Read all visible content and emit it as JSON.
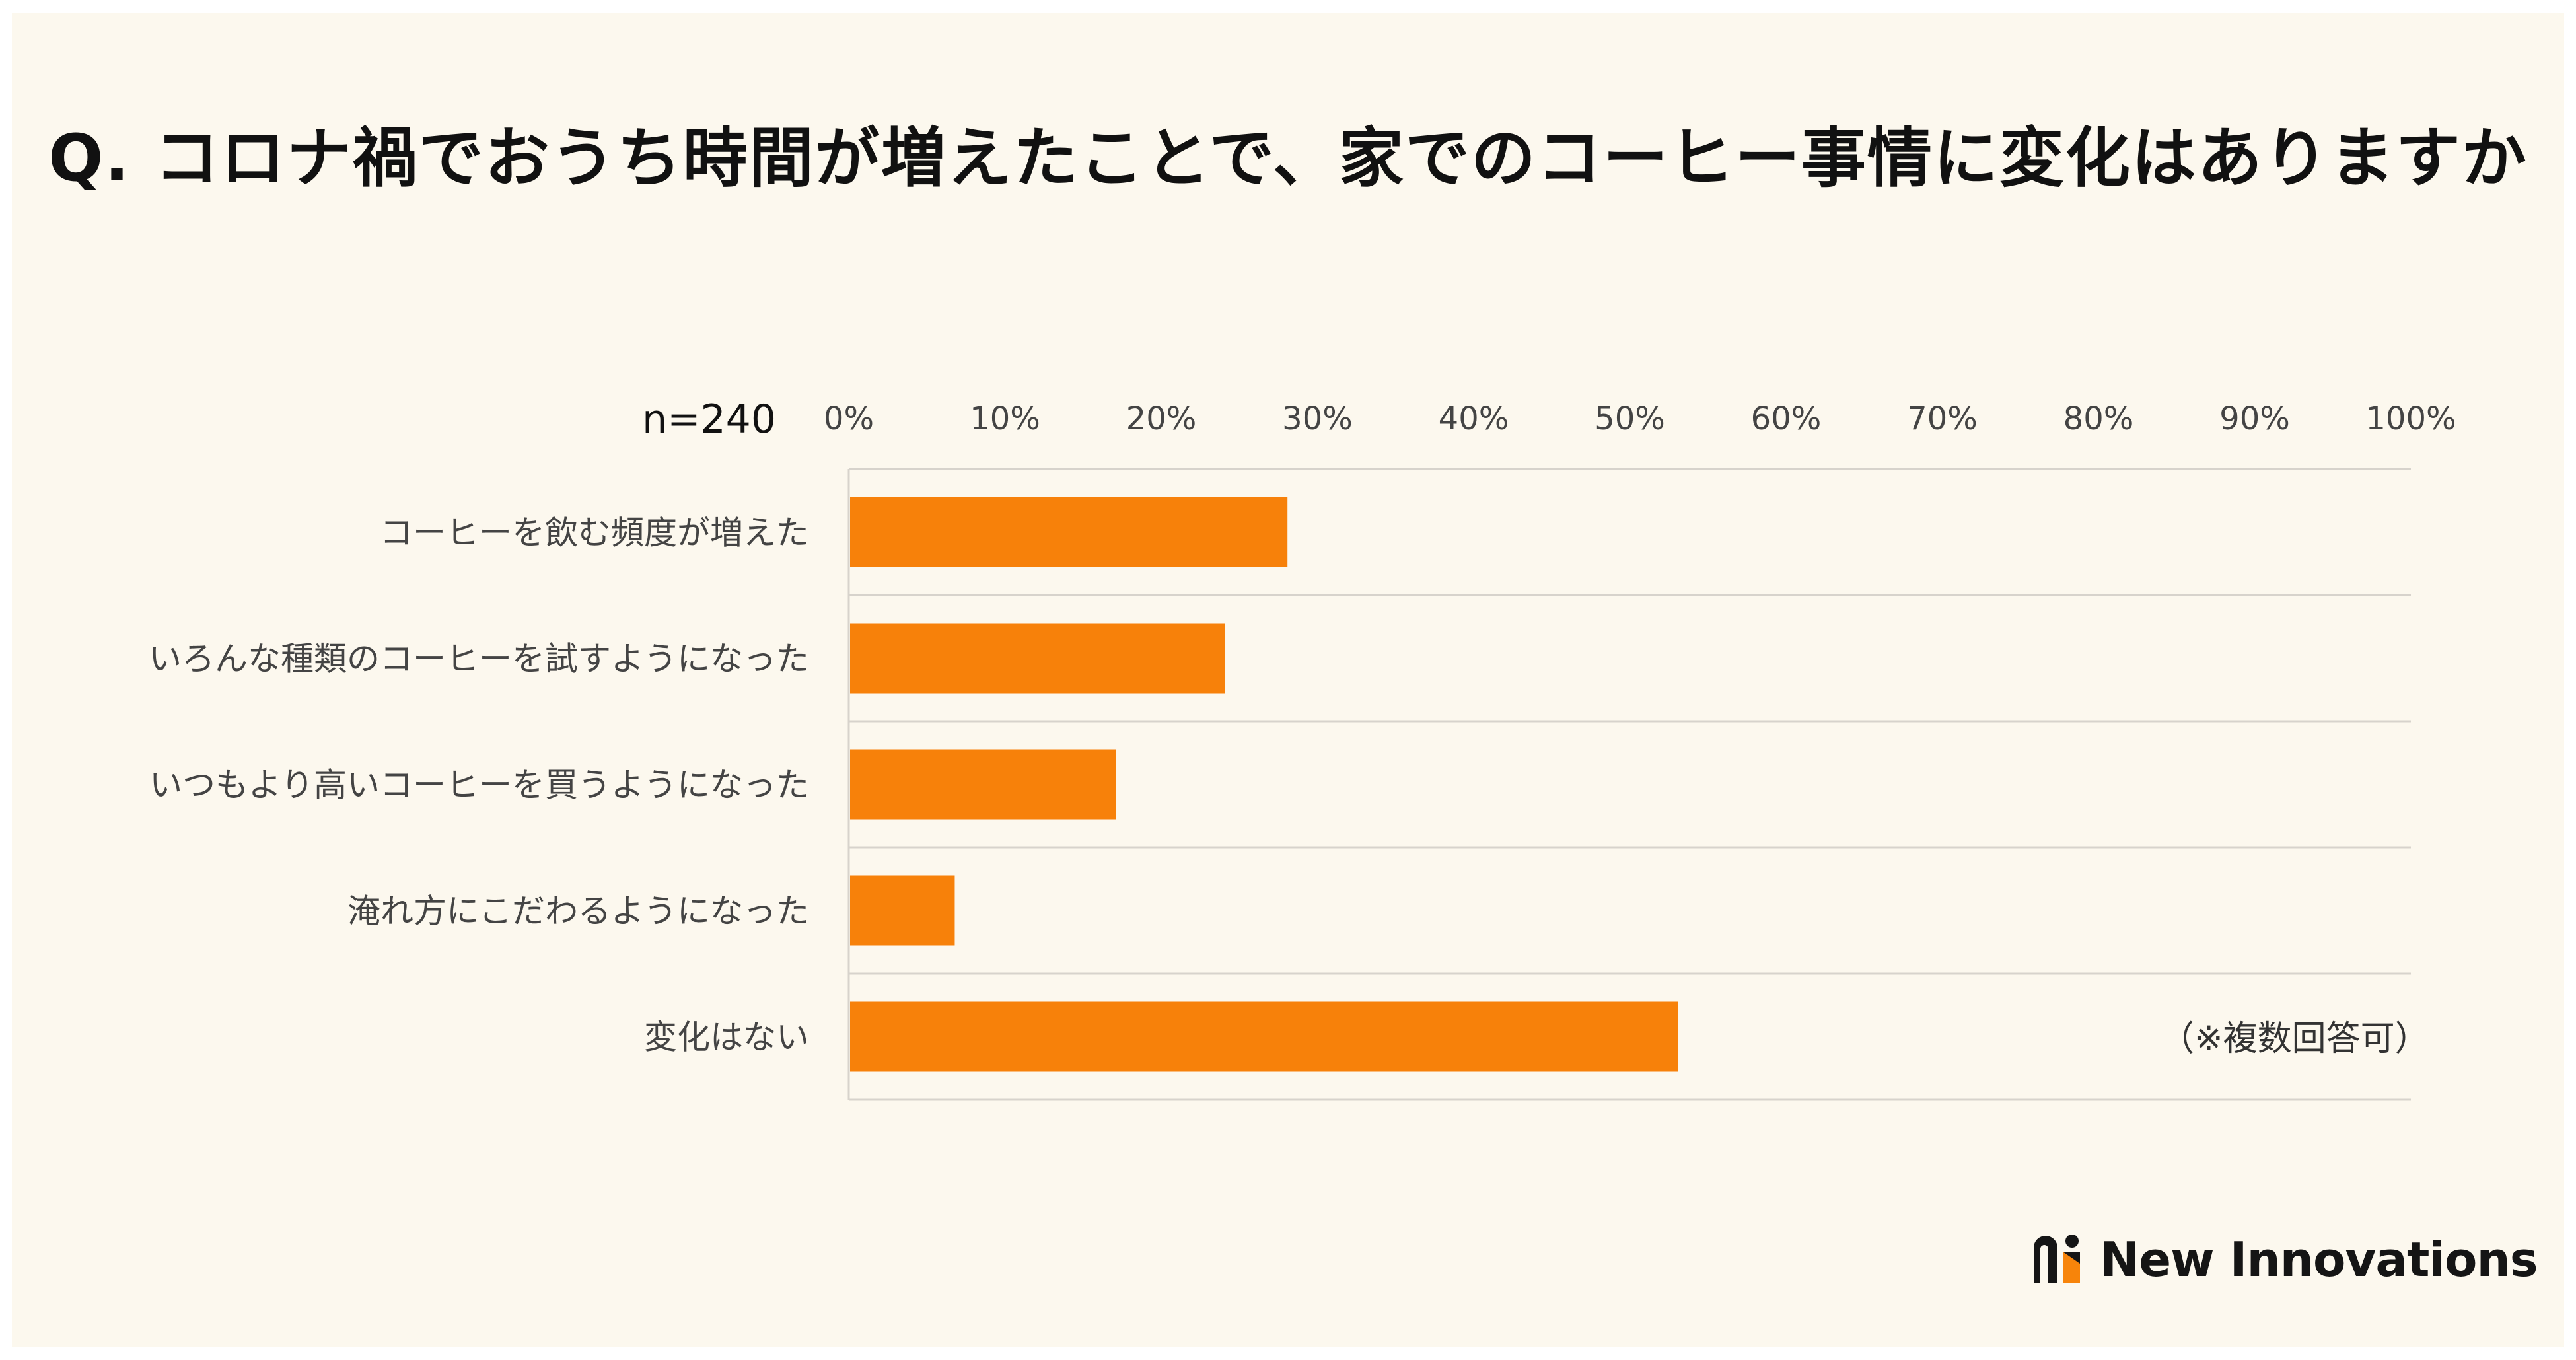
{
  "title": "Q. コロナ禍でおうち時間が増えたことで、家でのコーヒー事情に変化はありますか",
  "sample_label": "n=240",
  "note": "（※複数回答可）",
  "brand": {
    "name": "New Innovations",
    "accent": "#f7840a",
    "dark": "#151515"
  },
  "colors": {
    "bar": "#f7810a",
    "background": "#fcf8ee",
    "grid": "#d7d3cc"
  },
  "chart_data": {
    "type": "bar",
    "orientation": "horizontal",
    "categories": [
      "コーヒーを飲む頻度が増えた",
      "いろんな種類のコーヒーを試すようになった",
      "いつもより高いコーヒーを買うようになった",
      "淹れ方にこだわるようになった",
      "変化はない"
    ],
    "values": [
      28,
      24,
      17,
      6.7,
      53
    ],
    "xlim": [
      0,
      100
    ],
    "ticks": [
      "0%",
      "10%",
      "20%",
      "30%",
      "40%",
      "50%",
      "60%",
      "70%",
      "80%",
      "90%",
      "100%"
    ],
    "tick_values": [
      0,
      10,
      20,
      30,
      40,
      50,
      60,
      70,
      80,
      90,
      100
    ],
    "axis_position": "top",
    "grid": true,
    "xlabel": "",
    "ylabel": ""
  }
}
